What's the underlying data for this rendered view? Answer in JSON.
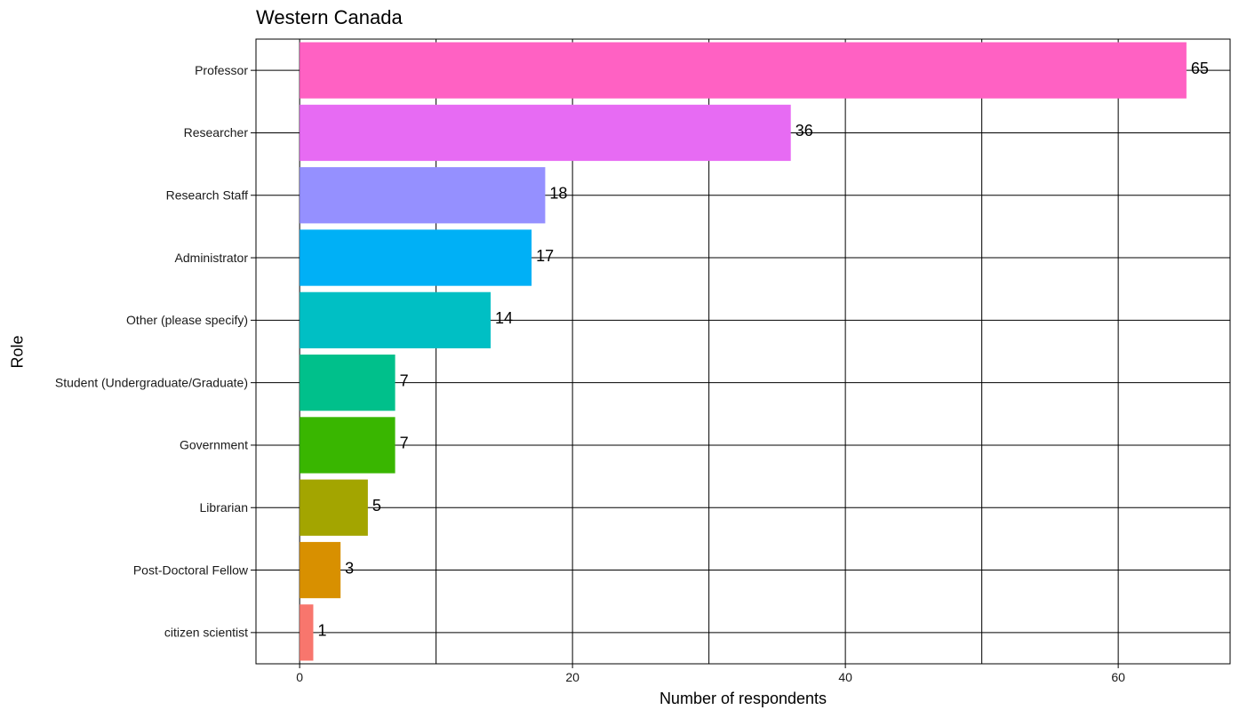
{
  "chart_data": {
    "type": "bar",
    "orientation": "horizontal",
    "title": "Western Canada",
    "xlabel": "Number of respondents",
    "ylabel": "Role",
    "xlim": [
      -3.2,
      68.2
    ],
    "x_ticks": [
      0,
      20,
      40,
      60
    ],
    "x_tick_labels": [
      "0",
      "20",
      "40",
      "60"
    ],
    "x_minor_gridlines": [
      10,
      30,
      50
    ],
    "grid": true,
    "categories": [
      "Professor",
      "Researcher",
      "Research Staff",
      "Administrator",
      "Other (please specify)",
      "Student (Undergraduate/Graduate)",
      "Government",
      "Librarian",
      "Post-Doctoral Fellow",
      "citizen scientist"
    ],
    "values": [
      65,
      36,
      18,
      17,
      14,
      7,
      7,
      5,
      3,
      1
    ],
    "data_labels": [
      "65",
      "36",
      "18",
      "17",
      "14",
      "7",
      "7",
      "5",
      "3",
      "1"
    ],
    "colors": [
      "#FF61C3",
      "#E76BF3",
      "#9590FF",
      "#00B0F6",
      "#00BFC4",
      "#00C08B",
      "#39B600",
      "#A3A500",
      "#D89000",
      "#F8766D"
    ]
  }
}
